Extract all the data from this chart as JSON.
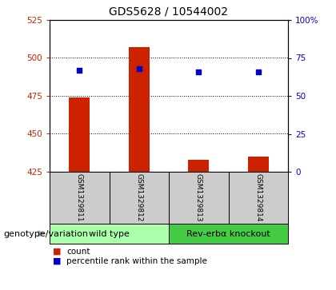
{
  "title": "GDS5628 / 10544002",
  "samples": [
    "GSM1329811",
    "GSM1329812",
    "GSM1329813",
    "GSM1329814"
  ],
  "counts": [
    474,
    507,
    433,
    435
  ],
  "percentiles": [
    67,
    68,
    66,
    66
  ],
  "ylim_left": [
    425,
    525
  ],
  "ylim_right": [
    0,
    100
  ],
  "yticks_left": [
    425,
    450,
    475,
    500,
    525
  ],
  "yticks_right": [
    0,
    25,
    50,
    75,
    100
  ],
  "ytick_labels_right": [
    "0",
    "25",
    "50",
    "75",
    "100%"
  ],
  "bar_color": "#cc2200",
  "dot_color": "#0000cc",
  "bar_bottom": 425,
  "groups": [
    {
      "label": "wild type",
      "samples": [
        0,
        1
      ],
      "color": "#aaffaa"
    },
    {
      "label": "Rev-erbα knockout",
      "samples": [
        2,
        3
      ],
      "color": "#44cc44"
    }
  ],
  "group_label": "genotype/variation",
  "legend_count_label": "count",
  "legend_percentile_label": "percentile rank within the sample",
  "sample_box_color": "#cccccc",
  "title_fontsize": 10,
  "tick_fontsize": 7.5,
  "sample_fontsize": 6.5,
  "group_fontsize": 8,
  "legend_fontsize": 7.5,
  "genotype_label_fontsize": 8
}
